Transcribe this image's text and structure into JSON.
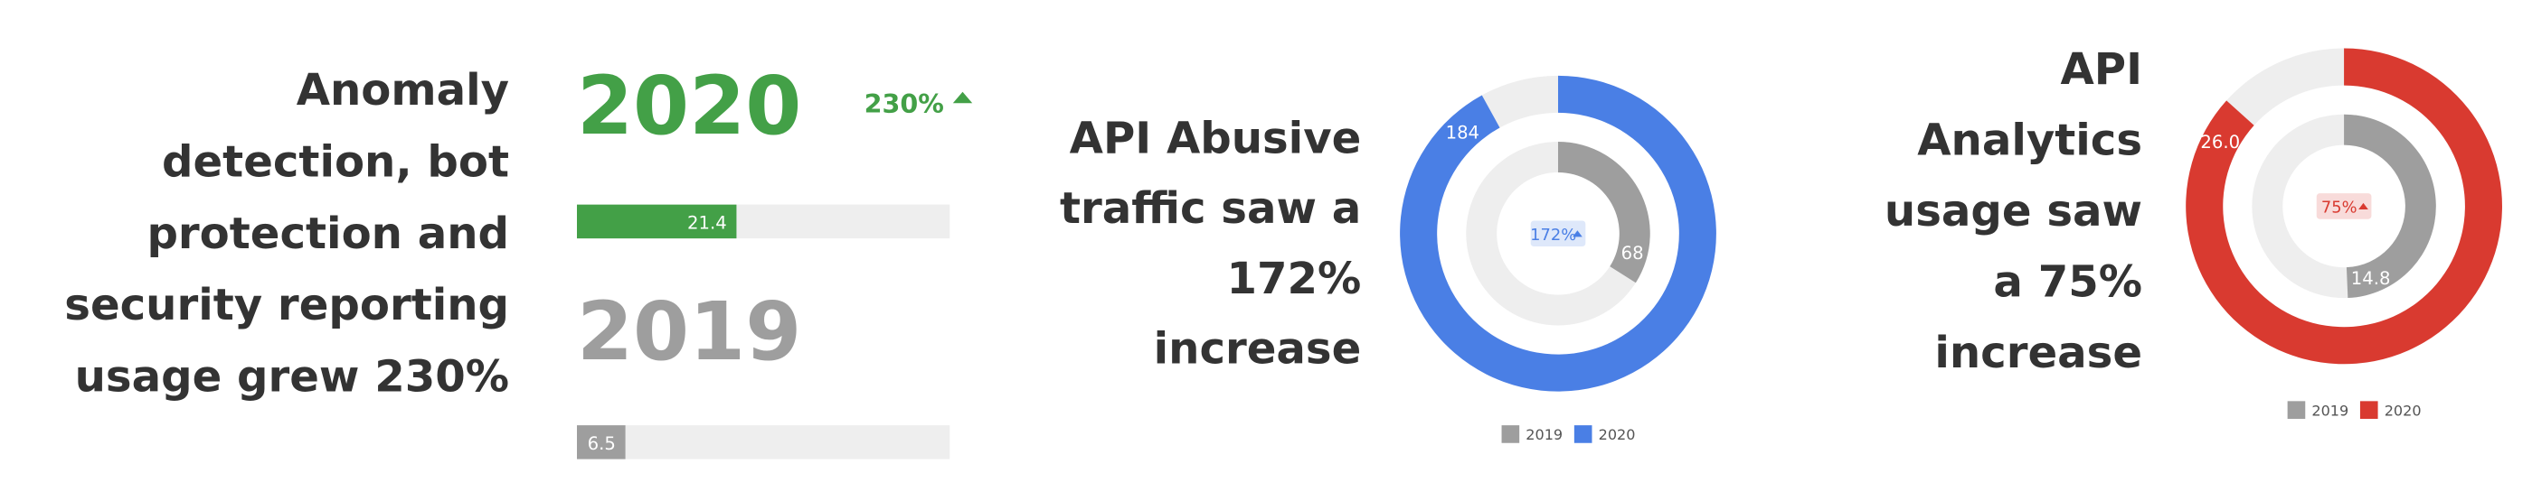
{
  "chart_data": [
    {
      "type": "bar",
      "description": [
        "Anomaly",
        "detection, bot",
        "protection and",
        "security reporting",
        "usage grew 230%"
      ],
      "categories": [
        "2020",
        "2019"
      ],
      "values": [
        21.4,
        6.5
      ],
      "colors": [
        "#43a047",
        "#9e9e9e"
      ],
      "change": "230%",
      "xlim": [
        0,
        50
      ]
    },
    {
      "type": "donut",
      "description": [
        "API Abusive",
        "traffic saw a",
        "172%",
        "increase"
      ],
      "change": "172%",
      "ylim": [
        0,
        200
      ],
      "series": [
        {
          "name": "2019",
          "color": "#9e9e9e",
          "values": [
            68
          ]
        },
        {
          "name": "2020",
          "color": "#4a7fe5",
          "values": [
            184
          ]
        }
      ]
    },
    {
      "type": "donut",
      "description": [
        "API",
        "Analytics",
        "usage saw",
        "a 75%",
        "increase"
      ],
      "change": "75%",
      "ylim": [
        0,
        30
      ],
      "series": [
        {
          "name": "2019",
          "color": "#9e9e9e",
          "values": [
            14.8
          ]
        },
        {
          "name": "2020",
          "color": "#d93a30",
          "values": [
            26.0
          ],
          "value_labels": [
            "26.0"
          ]
        }
      ]
    }
  ]
}
